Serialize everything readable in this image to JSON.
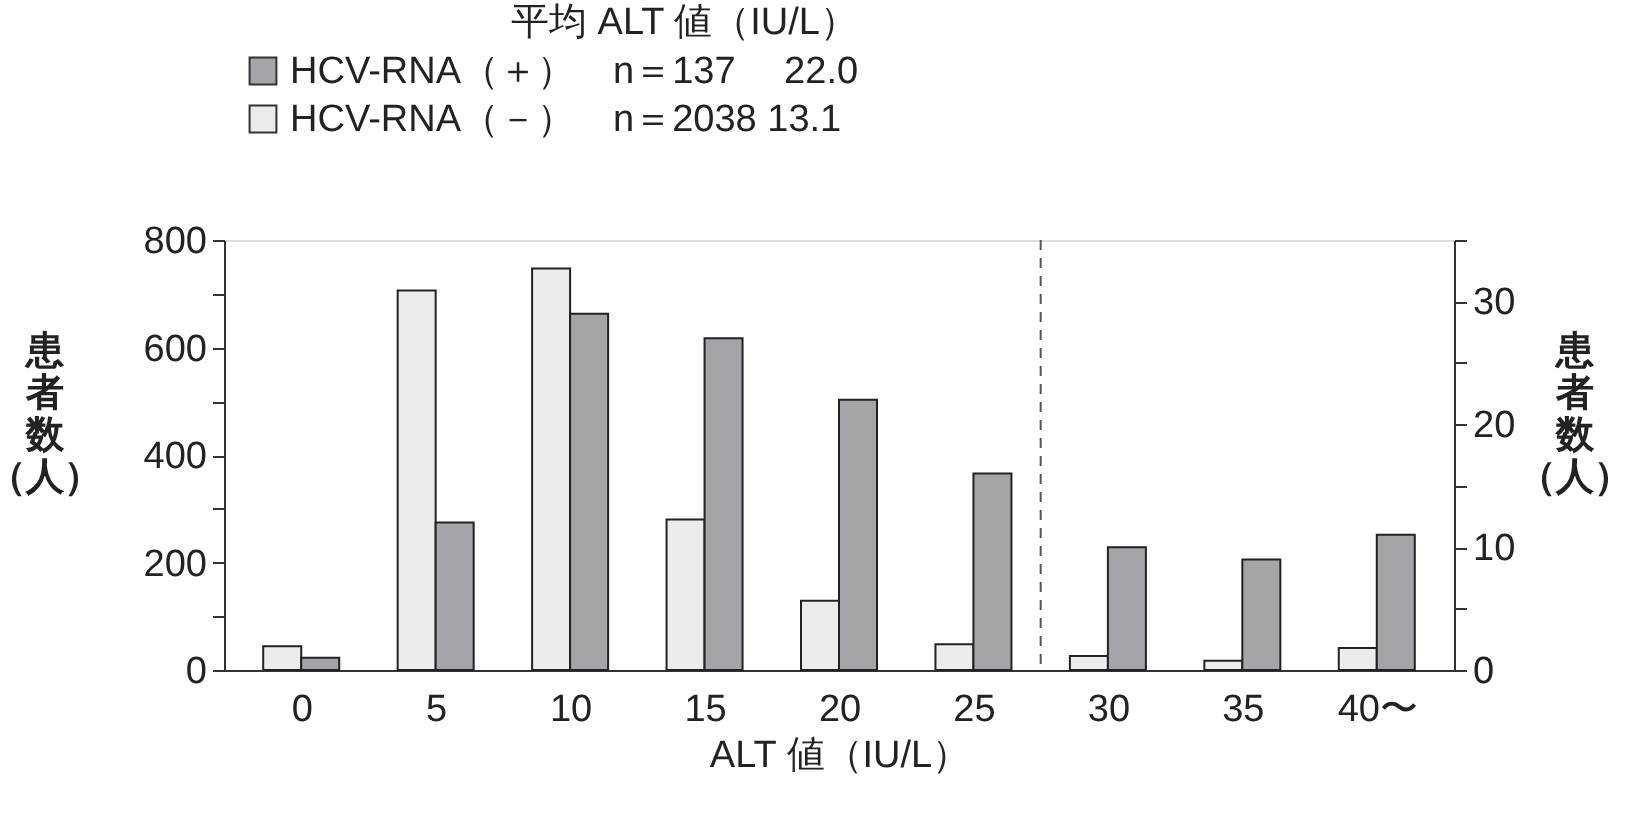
{
  "chart_data": {
    "type": "bar",
    "legend_title": "平均 ALT 値（IU/L）",
    "xlabel": "ALT 値（IU/L）",
    "ylabel": "患者数（人）",
    "y2label": "患者数（人）",
    "x": [
      0,
      5,
      10,
      15,
      20,
      25,
      30,
      35,
      40
    ],
    "xlim": [
      -2.5,
      42.5
    ],
    "xticks": [
      0,
      5,
      10,
      15,
      20,
      25,
      30,
      35,
      {
        "value": 40,
        "label": "40〜"
      }
    ],
    "ylim": [
      0,
      800
    ],
    "yticks": [
      0,
      {
        "value": 100,
        "label": null
      },
      200,
      {
        "value": 300,
        "label": null
      },
      400,
      {
        "value": 500,
        "label": null
      },
      600,
      {
        "value": 700,
        "label": null
      },
      800
    ],
    "y2lim": [
      0,
      35
    ],
    "y2ticks": [
      0,
      {
        "value": 5,
        "label": null
      },
      10,
      {
        "value": 15,
        "label": null
      },
      20,
      {
        "value": 25,
        "label": null
      },
      30,
      {
        "value": 35,
        "label": null
      }
    ],
    "series": [
      {
        "name": "HCV-RNA（－）　n＝2038 13.1",
        "color": "#ececec",
        "values": [
          44,
          706,
          747,
          280,
          129,
          48,
          26,
          17,
          41
        ]
      },
      {
        "name": "HCV-RNA（＋）　n＝137　 22.0",
        "color": "#a4a4a9",
        "axis": "y2",
        "values": [
          1,
          12,
          29,
          27,
          22,
          16,
          10,
          9,
          11
        ]
      }
    ],
    "ref_lines": [
      {
        "axis": "x",
        "value": 27.5,
        "line_style": "dashed",
        "color": "#555555"
      }
    ],
    "grid": false,
    "legend": "top"
  }
}
